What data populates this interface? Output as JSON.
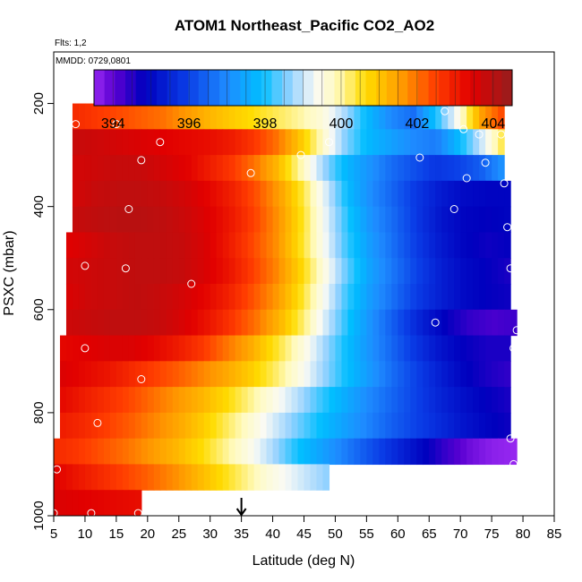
{
  "chart_data": {
    "type": "heatmap",
    "title": "ATOM1 Northeast_Pacific CO2_AO2",
    "annotations": {
      "flights": "Flts: 1,2",
      "dates": "MMDD: 0729,0801"
    },
    "xlabel": "Latitude (deg N)",
    "ylabel": "PSXC (mbar)",
    "xlim": [
      5,
      85
    ],
    "ylim": [
      1000,
      100
    ],
    "x_ticks": [
      "5",
      "10",
      "15",
      "20",
      "25",
      "30",
      "35",
      "40",
      "45",
      "50",
      "55",
      "60",
      "65",
      "70",
      "75",
      "80",
      "85"
    ],
    "y_ticks": [
      "200",
      "400",
      "600",
      "800",
      "1000"
    ],
    "colorbar": {
      "range": [
        393.5,
        404.5
      ],
      "tick_values": [
        394,
        396,
        398,
        400,
        402,
        404
      ],
      "tick_labels": [
        "394",
        "396",
        "398",
        "400",
        "402",
        "404"
      ]
    },
    "marker": {
      "latitude": 35
    },
    "rows": [
      {
        "p_top": 200,
        "p_bottom": 250,
        "lat_start": 8,
        "lat_end": 77,
        "values": [
          402.8,
          402.6,
          402.4,
          402.2,
          402.0,
          401.6,
          401.2,
          400.9,
          400.6,
          400.3,
          400.0,
          399.6,
          398.8,
          397.8,
          397.0,
          396.6,
          398.0,
          399.5,
          401.5,
          402.5
        ]
      },
      {
        "p_top": 250,
        "p_bottom": 300,
        "lat_start": 8,
        "lat_end": 77,
        "values": [
          403.8,
          403.7,
          403.6,
          403.5,
          403.4,
          403.3,
          403.2,
          403.0,
          402.6,
          402.0,
          401.0,
          399.8,
          398.6,
          397.8,
          397.4,
          397.0,
          396.8,
          397.8,
          399.0,
          400.5
        ]
      },
      {
        "p_top": 300,
        "p_bottom": 350,
        "lat_start": 8,
        "lat_end": 77,
        "values": [
          403.6,
          403.7,
          403.8,
          403.8,
          403.6,
          403.4,
          403.0,
          402.6,
          402.0,
          401.2,
          400.0,
          398.8,
          397.8,
          397.2,
          396.6,
          396.2,
          395.8,
          396.0,
          396.4,
          397.2
        ]
      },
      {
        "p_top": 350,
        "p_bottom": 400,
        "lat_start": 8,
        "lat_end": 78,
        "values": [
          403.6,
          403.8,
          403.9,
          403.9,
          403.8,
          403.6,
          403.3,
          402.9,
          402.3,
          401.5,
          400.4,
          399.1,
          397.8,
          397.0,
          396.4,
          395.8,
          395.3,
          395.0,
          394.9,
          394.9
        ]
      },
      {
        "p_top": 400,
        "p_bottom": 450,
        "lat_start": 8,
        "lat_end": 78,
        "values": [
          403.8,
          403.9,
          404.0,
          404.0,
          403.9,
          403.7,
          403.4,
          403.0,
          402.4,
          401.6,
          400.5,
          399.2,
          398.0,
          397.1,
          396.5,
          395.8,
          395.2,
          394.9,
          394.8,
          394.9
        ]
      },
      {
        "p_top": 450,
        "p_bottom": 500,
        "lat_start": 7,
        "lat_end": 78,
        "values": [
          403.4,
          403.6,
          403.8,
          403.9,
          403.9,
          403.8,
          403.5,
          403.0,
          402.4,
          401.7,
          400.6,
          399.4,
          398.2,
          397.3,
          396.6,
          395.9,
          395.3,
          394.9,
          394.7,
          394.8
        ]
      },
      {
        "p_top": 500,
        "p_bottom": 550,
        "lat_start": 7,
        "lat_end": 78,
        "values": [
          403.6,
          403.7,
          403.8,
          403.9,
          403.9,
          403.8,
          403.5,
          403.1,
          402.5,
          401.8,
          400.8,
          399.6,
          398.4,
          397.4,
          396.7,
          396.0,
          395.4,
          395.0,
          394.8,
          394.6
        ]
      },
      {
        "p_top": 550,
        "p_bottom": 600,
        "lat_start": 7,
        "lat_end": 78,
        "values": [
          403.5,
          403.7,
          403.8,
          403.9,
          403.8,
          403.6,
          403.3,
          402.9,
          402.3,
          401.6,
          400.6,
          399.4,
          398.2,
          397.3,
          396.6,
          395.9,
          395.4,
          395.0,
          394.8,
          394.7
        ]
      },
      {
        "p_top": 600,
        "p_bottom": 650,
        "lat_start": 7,
        "lat_end": 79,
        "values": [
          403.7,
          403.8,
          403.9,
          403.9,
          403.8,
          403.5,
          403.1,
          402.6,
          402.0,
          401.2,
          400.2,
          399.0,
          397.9,
          397.0,
          396.2,
          395.4,
          394.8,
          394.4,
          394.2,
          394.3
        ]
      },
      {
        "p_top": 650,
        "p_bottom": 700,
        "lat_start": 6,
        "lat_end": 78,
        "values": [
          403.3,
          403.4,
          403.5,
          403.5,
          403.3,
          403.0,
          402.6,
          402.0,
          401.4,
          400.6,
          399.8,
          398.9,
          398.0,
          397.2,
          396.5,
          395.8,
          395.2,
          394.8,
          394.6,
          394.6
        ]
      },
      {
        "p_top": 700,
        "p_bottom": 750,
        "lat_start": 6,
        "lat_end": 78,
        "values": [
          403.5,
          403.3,
          403.1,
          402.8,
          402.5,
          402.2,
          401.8,
          401.4,
          400.9,
          400.3,
          399.6,
          398.8,
          398.0,
          397.3,
          396.6,
          396.0,
          395.4,
          394.9,
          394.6,
          394.4
        ]
      },
      {
        "p_top": 750,
        "p_bottom": 800,
        "lat_start": 6,
        "lat_end": 78,
        "values": [
          403.3,
          403.0,
          402.7,
          402.4,
          402.0,
          401.6,
          401.2,
          400.7,
          400.1,
          399.5,
          398.9,
          398.2,
          397.6,
          397.0,
          396.5,
          396.0,
          395.5,
          395.1,
          394.8,
          394.6
        ]
      },
      {
        "p_top": 800,
        "p_bottom": 850,
        "lat_start": 6,
        "lat_end": 78,
        "values": [
          403.0,
          402.8,
          402.5,
          402.2,
          401.8,
          401.4,
          400.9,
          400.3,
          399.7,
          399.1,
          398.5,
          397.9,
          397.4,
          396.9,
          396.4,
          396.0,
          395.6,
          395.2,
          394.9,
          394.7
        ]
      },
      {
        "p_top": 850,
        "p_bottom": 900,
        "lat_start": 5,
        "lat_end": 79,
        "values": [
          402.8,
          402.6,
          402.3,
          402.0,
          401.6,
          401.2,
          400.7,
          400.1,
          399.5,
          398.8,
          398.0,
          397.4,
          396.8,
          396.2,
          395.6,
          395.0,
          394.4,
          393.9,
          393.6,
          393.5
        ]
      },
      {
        "p_top": 900,
        "p_bottom": 950,
        "lat_start": 5,
        "lat_end": 49,
        "values": [
          403.4,
          403.0,
          402.6,
          402.2,
          401.7,
          401.0,
          400.3,
          399.6,
          399.1,
          398.6
        ]
      },
      {
        "p_top": 950,
        "p_bottom": 1000,
        "lat_start": 5,
        "lat_end": 19,
        "values": [
          403.5,
          403.4,
          403.3,
          403.2
        ]
      }
    ],
    "points": [
      [
        8.5,
        240
      ],
      [
        15,
        240
      ],
      [
        19,
        310
      ],
      [
        22,
        275
      ],
      [
        17,
        405
      ],
      [
        10,
        515
      ],
      [
        16.5,
        520
      ],
      [
        27,
        550
      ],
      [
        36.5,
        335
      ],
      [
        44.5,
        300
      ],
      [
        49,
        275
      ],
      [
        63.5,
        305
      ],
      [
        67.5,
        215
      ],
      [
        70.5,
        250
      ],
      [
        73,
        260
      ],
      [
        74,
        315
      ],
      [
        76.5,
        260
      ],
      [
        71,
        345
      ],
      [
        77,
        355
      ],
      [
        69,
        405
      ],
      [
        77.5,
        440
      ],
      [
        78,
        520
      ],
      [
        66,
        625
      ],
      [
        78.5,
        675
      ],
      [
        79,
        640
      ],
      [
        10,
        675
      ],
      [
        19,
        735
      ],
      [
        12,
        820
      ],
      [
        78,
        850
      ],
      [
        78.5,
        900
      ],
      [
        5.5,
        910
      ],
      [
        5,
        995
      ],
      [
        11,
        995
      ],
      [
        18.5,
        995
      ]
    ]
  }
}
